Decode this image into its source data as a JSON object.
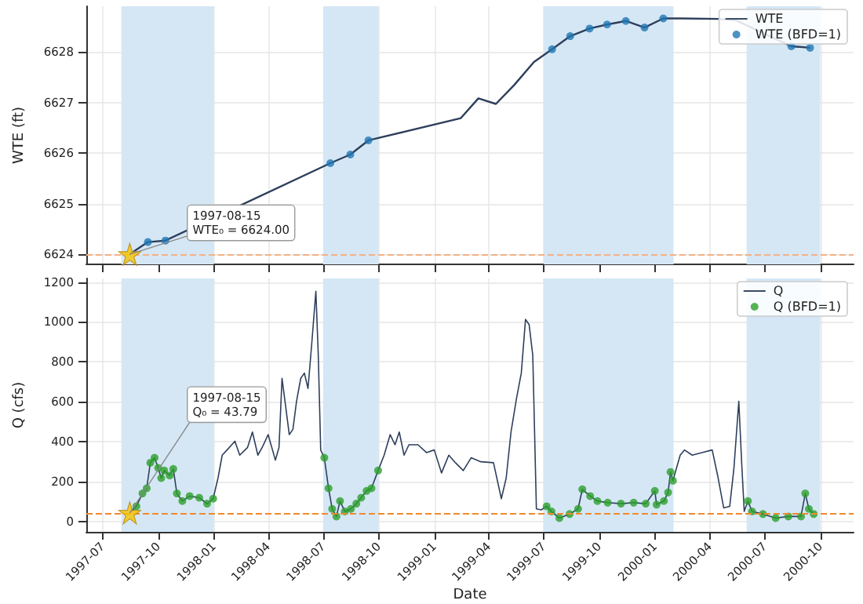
{
  "chart_data": [
    {
      "type": "line",
      "ylabel": "WTE (ft)",
      "xlim": [
        "1997-06-04",
        "2000-11-25"
      ],
      "ylim": [
        6623.8,
        6628.9
      ],
      "xticks": [
        "1997-07",
        "1997-10",
        "1998-01",
        "1998-04",
        "1998-07",
        "1998-10",
        "1999-01",
        "1999-04",
        "1999-07",
        "1999-10",
        "2000-01",
        "2000-04",
        "2000-07",
        "2000-10"
      ],
      "yticks": [
        6624,
        6625,
        6626,
        6627,
        6628
      ],
      "tick_labels": "y",
      "grid": true,
      "legend": "top right",
      "x": [
        "1997-08-15",
        "1997-09-14",
        "1997-10-13",
        "1998-07-13",
        "1998-08-15",
        "1998-09-14",
        "1999-02-14",
        "1999-03-15",
        "1999-04-13",
        "1999-05-13",
        "1999-06-15",
        "1999-07-15",
        "1999-08-14",
        "1999-09-15",
        "1999-10-14",
        "1999-11-14",
        "1999-12-15",
        "2000-01-15",
        "2000-02-15",
        "2000-04-15",
        "2000-05-15",
        "2000-08-14",
        "2000-09-14"
      ],
      "series": [
        {
          "name": "WTE",
          "color": "#2e3f5c",
          "marker": "none",
          "values": [
            6624.0,
            6624.24,
            6624.27,
            6625.8,
            6625.97,
            6626.25,
            6626.69,
            6627.08,
            6626.97,
            6627.34,
            6627.8,
            6628.05,
            6628.31,
            6628.46,
            6628.54,
            6628.61,
            6628.48,
            6628.66,
            6628.66,
            6628.65,
            6628.62,
            6628.11,
            6628.08
          ]
        },
        {
          "name": "WTE (BFD=1)",
          "type": "scatter",
          "color": "#1f77b4",
          "marker": "circle",
          "x": [
            "1997-09-14",
            "1997-10-13",
            "1998-07-13",
            "1998-08-15",
            "1998-09-14",
            "1999-07-15",
            "1999-08-14",
            "1999-09-15",
            "1999-10-14",
            "1999-11-14",
            "1999-12-15",
            "2000-01-15",
            "2000-08-14",
            "2000-09-14"
          ],
          "values": [
            6624.24,
            6624.27,
            6625.8,
            6625.97,
            6626.25,
            6628.05,
            6628.31,
            6628.46,
            6628.54,
            6628.61,
            6628.48,
            6628.66,
            6628.11,
            6628.08
          ]
        },
        {
          "type": "scatter",
          "color": "#f5c400",
          "marker": "star",
          "x": [
            "1997-08-15"
          ],
          "values": [
            6624.0
          ]
        }
      ],
      "bands": [
        {
          "axis": "x",
          "from": "1997-08-01",
          "to": "1998-01-01",
          "color": "#d5e7f5"
        },
        {
          "axis": "x",
          "from": "1998-07-01",
          "to": "1998-10-01",
          "color": "#d5e7f5"
        },
        {
          "axis": "x",
          "from": "1999-07-01",
          "to": "2000-02-01",
          "color": "#d5e7f5"
        },
        {
          "axis": "x",
          "from": "2000-06-01",
          "to": "2000-10-01",
          "color": "#d5e7f5"
        }
      ],
      "ref_lines": [
        {
          "axis": "y",
          "value": 6624,
          "color": "#f4b183",
          "line_style": "dashed"
        }
      ],
      "annotations": [
        {
          "text": "1997-08-15\nWTE₀ = 6624.00",
          "x": "1997-08-15",
          "y": 6624
        }
      ]
    },
    {
      "type": "line",
      "xlabel": "Date",
      "ylabel": "Q (cfs)",
      "xlim": [
        "1997-06-04",
        "2000-11-25"
      ],
      "ylim": [
        -51,
        1218
      ],
      "xticks": [
        "1997-07",
        "1997-10",
        "1998-01",
        "1998-04",
        "1998-07",
        "1998-10",
        "1999-01",
        "1999-04",
        "1999-07",
        "1999-10",
        "2000-01",
        "2000-04",
        "2000-07",
        "2000-10"
      ],
      "yticks": [
        0,
        200,
        400,
        600,
        800,
        1000,
        1200
      ],
      "grid": true,
      "legend": "top right",
      "x": [
        "1997-08-15",
        "1997-08-26",
        "1997-09-05",
        "1997-09-12",
        "1997-09-18",
        "1997-09-25",
        "1997-10-01",
        "1997-10-06",
        "1997-10-11",
        "1997-10-20",
        "1997-10-26",
        "1997-11-01",
        "1997-11-10",
        "1997-11-22",
        "1997-12-08",
        "1997-12-21",
        "1997-12-31",
        "1998-01-08",
        "1998-01-15",
        "1998-01-23",
        "1998-02-05",
        "1998-02-13",
        "1998-02-26",
        "1998-03-06",
        "1998-03-15",
        "1998-03-23",
        "1998-04-01",
        "1998-04-13",
        "1998-04-19",
        "1998-04-24",
        "1998-04-30",
        "1998-05-06",
        "1998-05-12",
        "1998-05-18",
        "1998-05-25",
        "1998-05-31",
        "1998-06-06",
        "1998-06-12",
        "1998-06-19",
        "1998-06-23",
        "1998-06-27",
        "1998-07-03",
        "1998-07-10",
        "1998-07-16",
        "1998-07-23",
        "1998-07-29",
        "1998-08-06",
        "1998-08-16",
        "1998-08-25",
        "1998-09-02",
        "1998-09-11",
        "1998-09-19",
        "1998-09-30",
        "1998-10-10",
        "1998-10-20",
        "1998-10-28",
        "1998-11-04",
        "1998-11-12",
        "1998-11-20",
        "1998-12-05",
        "1998-12-19",
        "1999-01-01",
        "1999-01-13",
        "1999-01-25",
        "1999-02-05",
        "1999-02-18",
        "1999-03-03",
        "1999-03-19",
        "1999-04-09",
        "1999-04-22",
        "1999-04-30",
        "1999-05-08",
        "1999-05-17",
        "1999-05-25",
        "1999-06-01",
        "1999-06-07",
        "1999-06-13",
        "1999-06-19",
        "1999-06-27",
        "1999-07-06",
        "1999-07-14",
        "1999-07-27",
        "1999-08-13",
        "1999-08-27",
        "1999-09-03",
        "1999-09-16",
        "1999-09-28",
        "1999-10-15",
        "1999-11-06",
        "1999-11-27",
        "1999-12-17",
        "2000-01-01",
        "2000-01-04",
        "2000-01-16",
        "2000-01-23",
        "2000-01-27",
        "2000-01-31",
        "2000-02-12",
        "2000-02-19",
        "2000-03-03",
        "2000-03-19",
        "2000-04-05",
        "2000-04-14",
        "2000-04-24",
        "2000-05-04",
        "2000-05-11",
        "2000-05-19",
        "2000-05-24",
        "2000-05-28",
        "2000-06-03",
        "2000-06-10",
        "2000-06-28",
        "2000-07-19",
        "2000-08-09",
        "2000-08-30",
        "2000-09-06",
        "2000-09-12",
        "2000-09-20"
      ],
      "series": [
        {
          "name": "Q",
          "color": "#2e3f5c",
          "marker": "none",
          "values": [
            43.79,
            77,
            141,
            167,
            295,
            320,
            269,
            218,
            256,
            231,
            264,
            141,
            103,
            128,
            120,
            90,
            115,
            218,
            333,
            359,
            403,
            333,
            372,
            449,
            333,
            377,
            436,
            308,
            372,
            718,
            577,
            436,
            462,
            603,
            718,
            744,
            667,
            885,
            1154,
            833,
            359,
            320,
            167,
            64,
            26,
            103,
            51,
            64,
            90,
            120,
            154,
            167,
            256,
            333,
            436,
            385,
            449,
            333,
            385,
            385,
            346,
            359,
            244,
            333,
            295,
            256,
            320,
            300,
            295,
            115,
            218,
            449,
            615,
            744,
            1013,
            987,
            833,
            64,
            59,
            77,
            51,
            18,
            38,
            64,
            162,
            128,
            103,
            95,
            90,
            95,
            90,
            154,
            85,
            103,
            146,
            249,
            205,
            333,
            359,
            333,
            346,
            359,
            231,
            69,
            77,
            269,
            603,
            282,
            51,
            103,
            51,
            38,
            18,
            26,
            26,
            141,
            64,
            38
          ]
        },
        {
          "name": "Q (BFD=1)",
          "type": "scatter",
          "color": "#2ca02c",
          "marker": "circle",
          "x": [
            "1997-08-26",
            "1997-09-05",
            "1997-09-12",
            "1997-09-18",
            "1997-09-25",
            "1997-10-01",
            "1997-10-06",
            "1997-10-11",
            "1997-10-20",
            "1997-10-26",
            "1997-11-01",
            "1997-11-10",
            "1997-11-22",
            "1997-12-08",
            "1997-12-21",
            "1997-12-31",
            "1998-07-03",
            "1998-07-10",
            "1998-07-16",
            "1998-07-23",
            "1998-07-29",
            "1998-08-06",
            "1998-08-16",
            "1998-08-25",
            "1998-09-02",
            "1998-09-11",
            "1998-09-19",
            "1998-09-30",
            "1999-07-06",
            "1999-07-14",
            "1999-07-27",
            "1999-08-13",
            "1999-08-27",
            "1999-09-03",
            "1999-09-16",
            "1999-09-28",
            "1999-10-15",
            "1999-11-06",
            "1999-11-27",
            "1999-12-17",
            "2000-01-01",
            "2000-01-04",
            "2000-01-16",
            "2000-01-23",
            "2000-01-27",
            "2000-01-31",
            "2000-06-03",
            "2000-06-10",
            "2000-06-28",
            "2000-07-19",
            "2000-08-09",
            "2000-08-30",
            "2000-09-06",
            "2000-09-12",
            "2000-09-20"
          ],
          "values": [
            77,
            141,
            167,
            295,
            320,
            269,
            218,
            256,
            231,
            264,
            141,
            103,
            128,
            120,
            90,
            115,
            320,
            167,
            64,
            26,
            103,
            51,
            64,
            90,
            120,
            154,
            167,
            256,
            77,
            51,
            18,
            38,
            64,
            162,
            128,
            103,
            95,
            90,
            95,
            90,
            154,
            85,
            103,
            146,
            249,
            205,
            103,
            51,
            38,
            18,
            26,
            26,
            141,
            64,
            38
          ]
        },
        {
          "type": "scatter",
          "color": "#f5c400",
          "marker": "star",
          "x": [
            "1997-08-15"
          ],
          "values": [
            43.79
          ]
        }
      ],
      "bands": [
        {
          "axis": "x",
          "from": "1997-08-01",
          "to": "1998-01-01",
          "color": "#d5e7f5"
        },
        {
          "axis": "x",
          "from": "1998-07-01",
          "to": "1998-10-01",
          "color": "#d5e7f5"
        },
        {
          "axis": "x",
          "from": "1999-07-01",
          "to": "2000-02-01",
          "color": "#d5e7f5"
        },
        {
          "axis": "x",
          "from": "2000-06-01",
          "to": "2000-10-01",
          "color": "#d5e7f5"
        }
      ],
      "ref_lines": [
        {
          "axis": "y",
          "value": 43.79,
          "color": "#f08a2c",
          "line_style": "dashed"
        }
      ],
      "annotations": [
        {
          "text": "1997-08-15\nQ₀ = 43.79",
          "x": "1997-08-15",
          "y": 43.79
        }
      ]
    }
  ]
}
